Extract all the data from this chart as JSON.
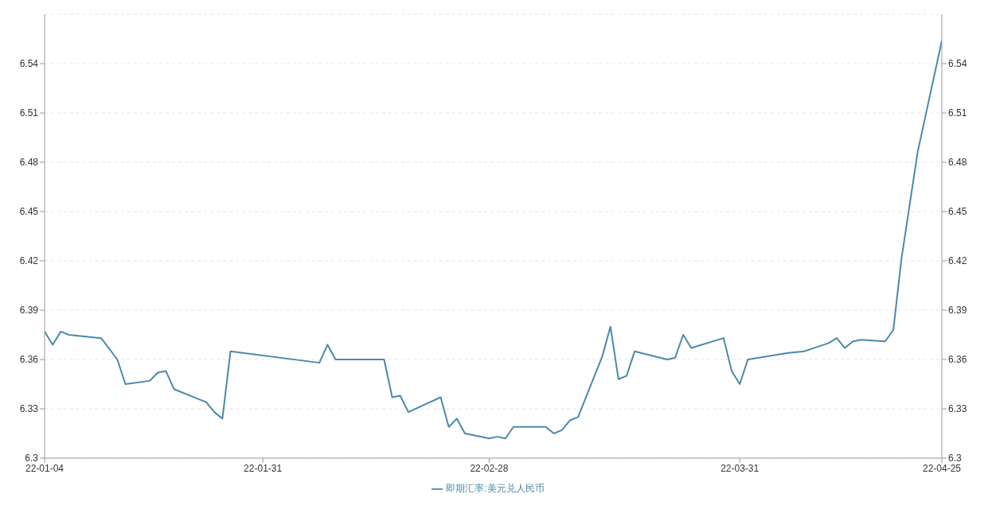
{
  "chart_data": {
    "type": "line",
    "x": [
      "--01-04",
      "--01-05",
      "--01-06",
      "--01-07",
      "--01-11",
      "--01-13",
      "--01-14",
      "--01-17",
      "--01-18",
      "--01-19",
      "--01-20",
      "--01-24",
      "--01-25",
      "--01-26",
      "--01-27",
      "--02-07",
      "--02-08",
      "--02-09",
      "--02-14",
      "--02-15",
      "--02-16",
      "--02-17",
      "--02-18",
      "--02-22",
      "--02-23",
      "--02-24",
      "--02-25",
      "--02-28",
      "--03-01",
      "--03-02",
      "--03-03",
      "--03-07",
      "--03-08",
      "--03-09",
      "--03-10",
      "--03-11",
      "--03-14",
      "--03-15",
      "--03-16",
      "--03-17",
      "--03-18",
      "--03-22",
      "--03-23",
      "--03-24",
      "--03-25",
      "--03-29",
      "--03-30",
      "--03-31",
      "--04-01",
      "--04-06",
      "--04-08",
      "--04-11",
      "--04-12",
      "--04-13",
      "--04-14",
      "--04-15",
      "--04-18",
      "--04-19",
      "--04-20",
      "--04-22",
      "--04-25"
    ],
    "series": [
      {
        "name": "即期汇率:美元兑人民币",
        "color": "#4a8aa8",
        "values": [
          6.377,
          6.369,
          6.377,
          6.375,
          6.373,
          6.36,
          6.345,
          6.347,
          6.352,
          6.353,
          6.342,
          6.334,
          6.328,
          6.324,
          6.365,
          6.358,
          6.369,
          6.36,
          6.36,
          6.36,
          6.337,
          6.338,
          6.328,
          6.337,
          6.319,
          6.324,
          6.315,
          6.312,
          6.313,
          6.312,
          6.319,
          6.319,
          6.315,
          6.317,
          6.323,
          6.325,
          6.362,
          6.38,
          6.348,
          6.35,
          6.365,
          6.36,
          6.361,
          6.375,
          6.367,
          6.373,
          6.353,
          6.345,
          6.36,
          6.364,
          6.365,
          6.37,
          6.373,
          6.367,
          6.371,
          6.372,
          6.371,
          6.378,
          6.421,
          6.486,
          6.554
        ]
      }
    ],
    "xlim": [
      "--01-04",
      "--04-25"
    ],
    "xticks": [
      {
        "value": "--01-04",
        "label": "22-01-04"
      },
      {
        "value": "--01-31",
        "label": "22-01-31"
      },
      {
        "value": "--02-28",
        "label": "22-02-28"
      },
      {
        "value": "--03-31",
        "label": "22-03-31"
      },
      {
        "value": "--04-25",
        "label": "22-04-25"
      }
    ],
    "ylim": [
      6.3,
      6.57
    ],
    "yticks": [
      6.3,
      6.33,
      6.36,
      6.39,
      6.42,
      6.45,
      6.48,
      6.51,
      6.54
    ],
    "y2lim": [
      6.3,
      6.57
    ],
    "y2ticks": [
      6.3,
      6.33,
      6.36,
      6.39,
      6.42,
      6.45,
      6.48,
      6.51,
      6.54
    ],
    "grid": "y",
    "legend": "bottom",
    "marker": "none",
    "line_style": "solid"
  }
}
